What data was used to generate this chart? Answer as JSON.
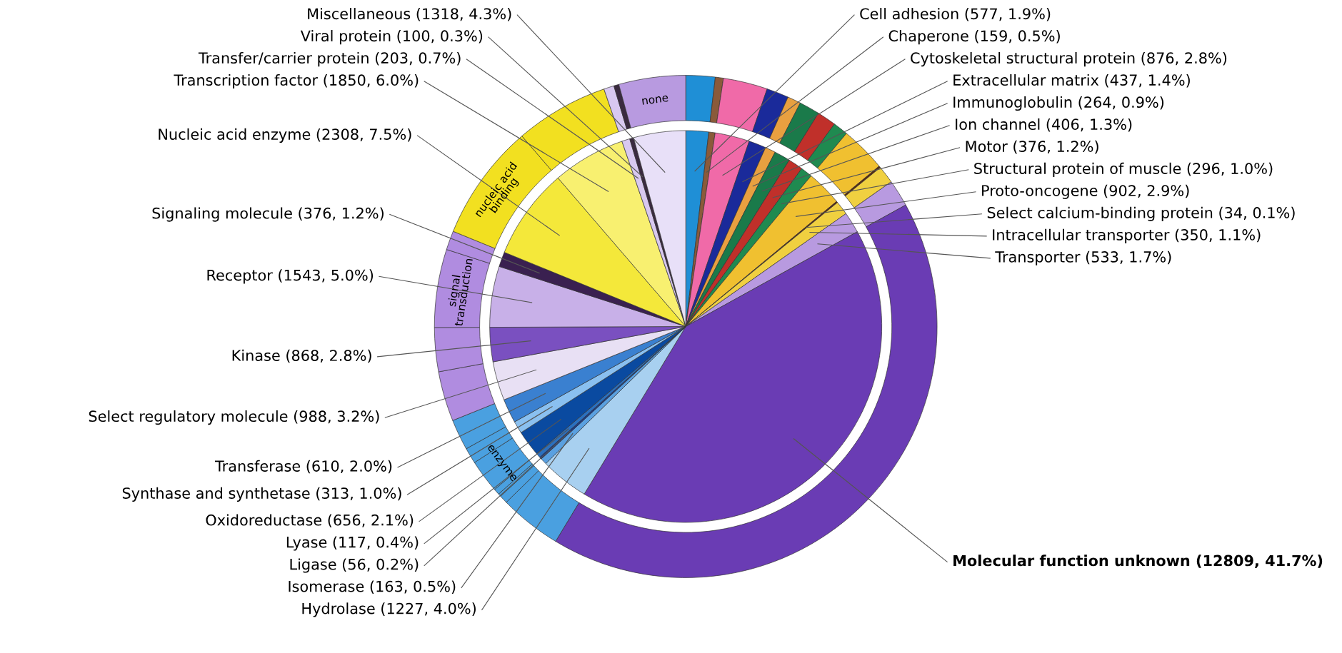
{
  "chart_data": {
    "type": "pie",
    "categories": [
      "Cell adhesion (577, 1.9%)",
      "Chaperone (159, 0.5%)",
      "Cytoskeletal structural protein (876, 2.8%)",
      "Extracellular matrix (437, 1.4%)",
      "Immunoglobulin (264, 0.9%)",
      "Ion channel (406, 1.3%)",
      "Motor (376, 1.2%)",
      "Structural protein of muscle (296, 1.0%)",
      "Proto-oncogene (902, 2.9%)",
      "Select calcium-binding protein (34, 0.1%)",
      "Intracellular transporter (350, 1.1%)",
      "Transporter (533, 1.7%)",
      "Molecular function unknown (12809, 41.7%)",
      "Hydrolase (1227, 4.0%)",
      "Isomerase (163, 0.5%)",
      "Ligase (56, 0.2%)",
      "Lyase (117, 0.4%)",
      "Oxidoreductase (656, 2.1%)",
      "Synthase and synthetase (313, 1.0%)",
      "Transferase (610, 2.0%)",
      "Select regulatory molecule (988, 3.2%)",
      "Kinase (868, 2.8%)",
      "Receptor (1543, 5.0%)",
      "Signaling molecule (376, 1.2%)",
      "Nucleic acid enzyme (2308, 7.5%)",
      "Transcription factor (1850, 6.0%)",
      "Transfer/carrier protein (203, 0.7%)",
      "Viral protein (100, 0.3%)",
      "Miscellaneous (1318, 4.3%)"
    ],
    "series": [
      {
        "values": [
          577,
          159,
          876,
          437,
          264,
          406,
          376,
          296,
          902,
          34,
          350,
          533,
          12809,
          1227,
          163,
          56,
          117,
          656,
          313,
          610,
          988,
          868,
          1543,
          376,
          2308,
          1850,
          203,
          100,
          1318
        ],
        "colors": [
          "#1f8fd6",
          "#8a5a3a",
          "#f06aa8",
          "#1a2a9a",
          "#e8a040",
          "#1a7a4a",
          "#c0302a",
          "#1f8a50",
          "#f0c030",
          "#5a2a10",
          "#f0d040",
          "#b89ae0",
          "#6a3cb4",
          "#a8d0f0",
          "#5aa0e0",
          "#1a3a8a",
          "#2a70c0",
          "#0a4aa0",
          "#8ac0f0",
          "#3a80d0",
          "#e8e0f4",
          "#7a50c0",
          "#c8b0e8",
          "#3a2050",
          "#f4e83a",
          "#f8f070",
          "#d8c8f0",
          "#3a2a40",
          "#e8e0f8"
        ]
      },
      {
        "type": "donut",
        "value_labels": [
          null,
          null,
          null,
          null,
          null,
          null,
          null,
          null,
          null,
          null,
          null,
          null,
          null,
          null,
          null,
          null,
          null,
          "enzyme",
          null,
          null,
          null,
          null,
          "signal\ntransduction",
          null,
          "nucleic acid\nbinding",
          null,
          null,
          null,
          "none"
        ],
        "values": [
          577,
          159,
          876,
          437,
          264,
          406,
          376,
          296,
          902,
          34,
          350,
          533,
          12809,
          1227,
          163,
          56,
          117,
          656,
          313,
          610,
          988,
          868,
          1543,
          376,
          2308,
          1850,
          203,
          100,
          1318
        ],
        "colors": [
          "#1f8fd6",
          "#8a5a3a",
          "#f06aa8",
          "#1a2a9a",
          "#e8a040",
          "#1a7a4a",
          "#c0302a",
          "#1f8a50",
          "#f0c030",
          "#5a2a10",
          "#f0d040",
          "#b89ae0",
          "#6a3cb4",
          "#4aa0e0",
          "#4aa0e0",
          "#4aa0e0",
          "#4aa0e0",
          "#4aa0e0",
          "#4aa0e0",
          "#4aa0e0",
          "#b08ce0",
          "#b08ce0",
          "#b08ce0",
          "#b08ce0",
          "#f2e020",
          "#f2e020",
          "#d8c8f0",
          "#3a2a40",
          "#b89ae0"
        ]
      }
    ]
  }
}
